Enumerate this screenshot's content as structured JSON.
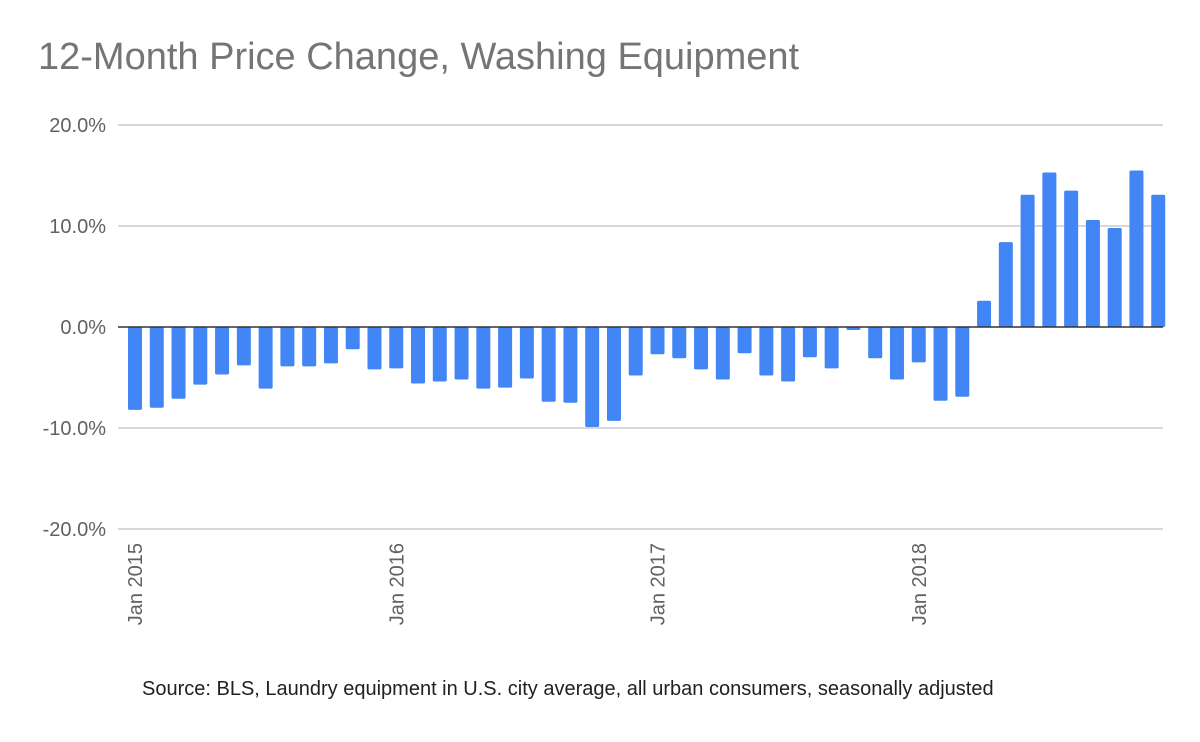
{
  "chart_data": {
    "type": "bar",
    "title": "12-Month Price Change, Washing Equipment",
    "xlabel": "",
    "ylabel": "",
    "ylim": [
      -20,
      20
    ],
    "yticks": [
      "20.0%",
      "10.0%",
      "0.0%",
      "-10.0%",
      "-20.0%"
    ],
    "ytick_values": [
      20,
      10,
      0,
      -10,
      -20
    ],
    "xtick_labels": [
      {
        "index": 0,
        "label": "Jan 2015"
      },
      {
        "index": 12,
        "label": "Jan 2016"
      },
      {
        "index": 24,
        "label": "Jan 2017"
      },
      {
        "index": 36,
        "label": "Jan 2018"
      }
    ],
    "categories": [
      "Jan 2015",
      "Feb 2015",
      "Mar 2015",
      "Apr 2015",
      "May 2015",
      "Jun 2015",
      "Jul 2015",
      "Aug 2015",
      "Sep 2015",
      "Oct 2015",
      "Nov 2015",
      "Dec 2015",
      "Jan 2016",
      "Feb 2016",
      "Mar 2016",
      "Apr 2016",
      "May 2016",
      "Jun 2016",
      "Jul 2016",
      "Aug 2016",
      "Sep 2016",
      "Oct 2016",
      "Nov 2016",
      "Dec 2016",
      "Jan 2017",
      "Feb 2017",
      "Mar 2017",
      "Apr 2017",
      "May 2017",
      "Jun 2017",
      "Jul 2017",
      "Aug 2017",
      "Sep 2017",
      "Oct 2017",
      "Nov 2017",
      "Dec 2017",
      "Jan 2018",
      "Feb 2018",
      "Mar 2018",
      "Apr 2018",
      "May 2018",
      "Jun 2018",
      "Jul 2018",
      "Aug 2018",
      "Sep 2018",
      "Oct 2018",
      "Nov 2018",
      "Dec 2018"
    ],
    "series": [
      {
        "values": [
          -8.2,
          -8.0,
          -7.1,
          -5.7,
          -4.7,
          -3.8,
          -6.1,
          -3.9,
          -3.9,
          -3.6,
          -2.2,
          -4.2,
          -4.1,
          -5.6,
          -5.4,
          -5.2,
          -6.1,
          -6.0,
          -5.1,
          -7.4,
          -7.5,
          -9.9,
          -9.3,
          -4.8,
          -2.7,
          -3.1,
          -4.2,
          -5.2,
          -2.6,
          -4.8,
          -5.4,
          -3.0,
          -4.1,
          -0.3,
          -3.1,
          -5.2,
          -3.5,
          -7.3,
          -6.9,
          2.6,
          8.4,
          13.1,
          15.3,
          13.5,
          10.6,
          9.8,
          15.5,
          13.1
        ]
      }
    ],
    "bar_color": "#4285f4",
    "grid": true,
    "gridline_color": "#cccccc",
    "zero_line_color": "#333333",
    "legend": "none"
  },
  "source_note": "Source: BLS, Laundry equipment in U.S. city average, all urban consumers, seasonally adjusted"
}
